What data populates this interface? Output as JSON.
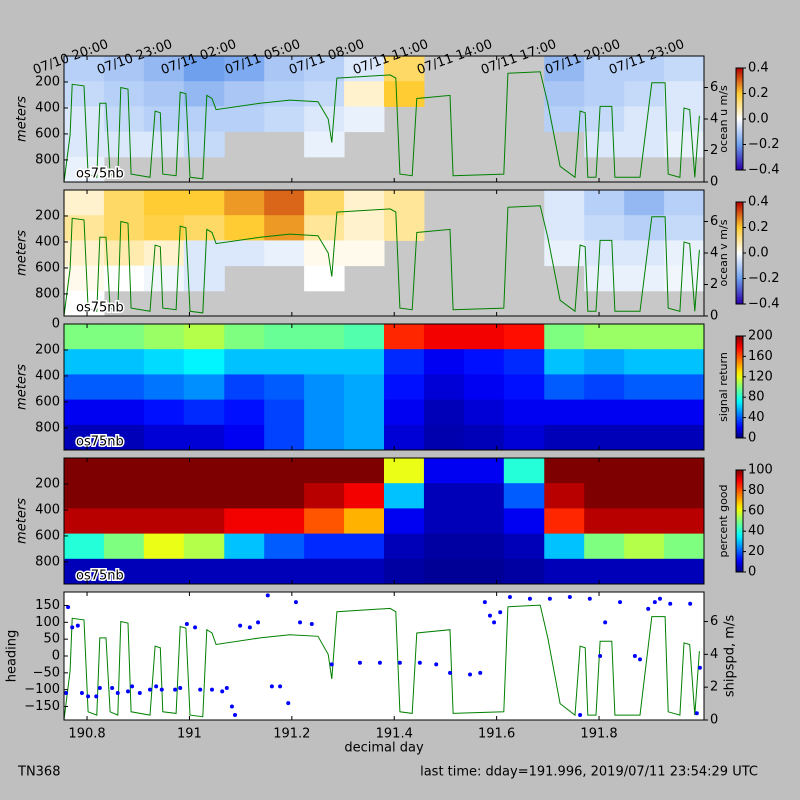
{
  "chart_data": [
    {
      "type": "heatmap",
      "ylabel": "meters",
      "annotation": "os75nb",
      "cbar_label": "ocean u m/s",
      "cmap": "diverging",
      "clim": [
        -0.4,
        0.4
      ],
      "cticks": [
        {
          "value": -0.4,
          "label": "−0.4"
        },
        {
          "value": -0.2,
          "label": "−0.2"
        },
        {
          "value": 0,
          "label": "0.0"
        },
        0.2,
        0.4
      ],
      "ylim": [
        0,
        970
      ],
      "yinvert": true,
      "yticks": [
        200,
        400,
        600,
        800
      ],
      "y2lim": [
        0,
        8
      ],
      "y2ticks": [
        0,
        2,
        4,
        6
      ],
      "x2ticks": [
        {
          "value": 190.833,
          "label": "07/10 20:00"
        },
        {
          "value": 190.958,
          "label": "07/10 23:00"
        },
        {
          "value": 191.083,
          "label": "07/11 02:00"
        },
        {
          "value": 191.208,
          "label": "07/11 05:00"
        },
        {
          "value": 191.333,
          "label": "07/11 08:00"
        },
        {
          "value": 191.458,
          "label": "07/11 11:00"
        },
        {
          "value": 191.583,
          "label": "07/11 14:00"
        },
        {
          "value": 191.708,
          "label": "07/11 17:00"
        },
        {
          "value": 191.833,
          "label": "07/11 20:00"
        },
        {
          "value": 191.958,
          "label": "07/11 23:00"
        }
      ],
      "xbins": [
        190.755,
        190.833,
        190.911,
        190.989,
        191.068,
        191.146,
        191.224,
        191.302,
        191.38,
        191.458,
        191.536,
        191.614,
        191.693,
        191.771,
        191.849,
        191.927,
        192.005
      ],
      "ybins": [
        0,
        194,
        388,
        582,
        776,
        970
      ],
      "z": [
        [
          -0.1,
          -0.12,
          -0.15,
          -0.2,
          -0.18,
          -0.12,
          -0.1,
          -0.05,
          0.15,
          null,
          null,
          null,
          -0.15,
          -0.1,
          -0.1,
          -0.08
        ],
        [
          -0.08,
          -0.1,
          -0.12,
          -0.15,
          -0.12,
          -0.1,
          -0.08,
          0.05,
          0.2,
          null,
          null,
          null,
          -0.12,
          -0.1,
          -0.08,
          -0.05
        ],
        [
          -0.05,
          -0.08,
          -0.1,
          -0.1,
          -0.1,
          -0.08,
          -0.05,
          -0.03,
          null,
          null,
          null,
          null,
          -0.1,
          -0.08,
          -0.05,
          -0.05
        ],
        [
          -0.05,
          -0.05,
          -0.05,
          -0.08,
          null,
          null,
          -0.03,
          null,
          null,
          null,
          null,
          null,
          null,
          -0.05,
          -0.05,
          -0.03
        ],
        [
          -0.03,
          null,
          null,
          null,
          null,
          null,
          null,
          null,
          null,
          null,
          null,
          null,
          null,
          null,
          null,
          null
        ]
      ]
    },
    {
      "type": "heatmap",
      "ylabel": "meters",
      "annotation": "os75nb",
      "cbar_label": "ocean v m/s",
      "cmap": "diverging",
      "clim": [
        -0.4,
        0.4
      ],
      "cticks": [
        {
          "value": -0.4,
          "label": "−0.4"
        },
        {
          "value": -0.2,
          "label": "−0.2"
        },
        {
          "value": 0,
          "label": "0.0"
        },
        0.2,
        0.4
      ],
      "ylim": [
        0,
        970
      ],
      "yinvert": true,
      "yticks": [
        200,
        400,
        600,
        800
      ],
      "y2lim": [
        0,
        8
      ],
      "y2ticks": [
        0,
        2,
        4,
        6
      ],
      "xbins": [
        190.755,
        190.833,
        190.911,
        190.989,
        191.068,
        191.146,
        191.224,
        191.302,
        191.38,
        191.458,
        191.536,
        191.614,
        191.693,
        191.771,
        191.849,
        191.927,
        192.005
      ],
      "ybins": [
        0,
        194,
        388,
        582,
        776,
        970
      ],
      "z": [
        [
          0.05,
          0.15,
          0.2,
          0.2,
          0.25,
          0.3,
          0.15,
          0.05,
          0.1,
          null,
          null,
          null,
          -0.05,
          -0.1,
          -0.15,
          -0.1
        ],
        [
          0.1,
          0.15,
          0.18,
          0.15,
          0.2,
          0.25,
          0.1,
          0.05,
          0.1,
          null,
          null,
          null,
          -0.05,
          -0.08,
          -0.1,
          -0.08
        ],
        [
          0.05,
          0.08,
          0.05,
          -0.05,
          -0.05,
          -0.03,
          0.02,
          0.02,
          null,
          null,
          null,
          null,
          -0.03,
          -0.05,
          -0.05,
          -0.03
        ],
        [
          0.02,
          0,
          -0.02,
          -0.05,
          null,
          null,
          0,
          null,
          null,
          null,
          null,
          null,
          null,
          -0.03,
          -0.03,
          -0.02
        ],
        [
          0,
          null,
          null,
          null,
          null,
          null,
          null,
          null,
          null,
          null,
          null,
          null,
          null,
          null,
          null,
          null
        ]
      ]
    },
    {
      "type": "heatmap",
      "ylabel": "meters",
      "annotation": "os75nb",
      "cbar_label": "signal return",
      "cmap": "jet",
      "clim": [
        0,
        200
      ],
      "cticks": [
        0,
        40,
        80,
        120,
        160,
        200
      ],
      "ylim": [
        0,
        970
      ],
      "yinvert": true,
      "yticks": [
        0,
        200,
        400,
        600,
        800
      ],
      "xbins": [
        190.755,
        190.833,
        190.911,
        190.989,
        191.068,
        191.146,
        191.224,
        191.302,
        191.38,
        191.458,
        191.536,
        191.614,
        191.693,
        191.771,
        191.849,
        191.927,
        192.005
      ],
      "ybins": [
        0,
        194,
        388,
        582,
        776,
        970
      ],
      "z": [
        [
          100,
          100,
          105,
          110,
          100,
          95,
          95,
          90,
          170,
          180,
          180,
          175,
          100,
          105,
          105,
          105
        ],
        [
          60,
          60,
          65,
          70,
          60,
          60,
          60,
          60,
          30,
          20,
          25,
          30,
          60,
          55,
          60,
          60
        ],
        [
          40,
          40,
          45,
          50,
          35,
          40,
          50,
          55,
          25,
          15,
          20,
          25,
          40,
          35,
          40,
          40
        ],
        [
          20,
          20,
          25,
          30,
          25,
          35,
          50,
          55,
          20,
          10,
          15,
          20,
          20,
          20,
          20,
          20
        ],
        [
          10,
          10,
          15,
          15,
          20,
          35,
          50,
          55,
          15,
          8,
          10,
          15,
          10,
          10,
          10,
          10
        ]
      ]
    },
    {
      "type": "heatmap",
      "ylabel": "meters",
      "annotation": "os75nb",
      "cbar_label": "percent good",
      "cmap": "jet",
      "clim": [
        0,
        100
      ],
      "cticks": [
        0,
        20,
        40,
        60,
        80,
        100
      ],
      "ylim": [
        0,
        970
      ],
      "yinvert": true,
      "yticks": [
        200,
        400,
        600,
        800
      ],
      "xbins": [
        190.755,
        190.833,
        190.911,
        190.989,
        191.068,
        191.146,
        191.224,
        191.302,
        191.38,
        191.458,
        191.536,
        191.614,
        191.693,
        191.771,
        191.849,
        191.927,
        192.005
      ],
      "ybins": [
        0,
        194,
        388,
        582,
        776,
        970
      ],
      "z": [
        [
          100,
          100,
          100,
          100,
          100,
          100,
          100,
          100,
          60,
          10,
          10,
          40,
          100,
          100,
          100,
          100
        ],
        [
          100,
          100,
          100,
          100,
          100,
          100,
          95,
          90,
          30,
          5,
          5,
          20,
          95,
          100,
          100,
          100
        ],
        [
          95,
          95,
          95,
          95,
          90,
          90,
          80,
          70,
          10,
          5,
          5,
          10,
          85,
          95,
          95,
          95
        ],
        [
          40,
          50,
          60,
          55,
          30,
          20,
          15,
          15,
          5,
          3,
          3,
          5,
          30,
          50,
          55,
          50
        ],
        [
          5,
          5,
          5,
          5,
          5,
          5,
          5,
          5,
          3,
          2,
          2,
          3,
          5,
          5,
          5,
          5
        ]
      ]
    },
    {
      "type": "scatter",
      "ylabel": "heading",
      "y2label": "shipspd, m/s",
      "xlabel": "decimal day",
      "xlim": [
        190.755,
        192.005
      ],
      "xticks": [
        190.8,
        191.0,
        191.2,
        191.4,
        191.6,
        191.8
      ],
      "ylim": [
        -190,
        190
      ],
      "yticks": [
        {
          "value": -150,
          "label": "−150"
        },
        {
          "value": -100,
          "label": "−100"
        },
        {
          "value": -50,
          "label": "−50"
        },
        0,
        50,
        100,
        150
      ],
      "y2lim": [
        0,
        7.8
      ],
      "y2ticks": [
        0,
        2,
        4,
        6
      ],
      "series": [
        {
          "color": "#0000ff",
          "x": [
            190.759,
            190.763,
            190.771,
            190.782,
            190.79,
            190.802,
            190.818,
            190.825,
            190.849,
            190.86,
            190.88,
            190.888,
            190.903,
            190.923,
            190.935,
            190.946,
            190.972,
            190.982,
            190.995,
            191.011,
            191.021,
            191.044,
            191.064,
            191.073,
            191.083,
            191.089,
            191.099,
            191.118,
            191.134,
            191.153,
            191.161,
            191.177,
            191.193,
            191.208,
            191.216,
            191.239,
            191.278,
            191.333,
            191.372,
            191.411,
            191.45,
            191.482,
            191.509,
            191.548,
            191.568,
            191.577,
            191.587,
            191.595,
            191.607,
            191.626,
            191.665,
            191.704,
            191.743,
            191.763,
            191.782,
            191.802,
            191.812,
            191.841,
            191.87,
            191.88,
            191.896,
            191.909,
            191.919,
            191.939,
            191.978,
            191.991,
            191.997
          ],
          "values": [
            -110,
            145,
            85,
            90,
            -110,
            -120,
            -120,
            -95,
            -95,
            -110,
            -105,
            -90,
            -110,
            -100,
            -90,
            -100,
            -100,
            -95,
            95,
            85,
            -100,
            -100,
            -105,
            -95,
            -150,
            -175,
            90,
            85,
            100,
            180,
            -90,
            -90,
            -140,
            160,
            100,
            95,
            -25,
            -20,
            -20,
            -20,
            -20,
            -25,
            -50,
            -55,
            -50,
            160,
            120,
            100,
            130,
            175,
            170,
            170,
            175,
            -175,
            170,
            0,
            100,
            160,
            0,
            -10,
            140,
            160,
            170,
            155,
            155,
            -170,
            -35
          ]
        },
        {
          "type": "line",
          "axis": "y2",
          "color": "#008000",
          "x": [
            190.755,
            190.767,
            190.771,
            190.794,
            190.802,
            190.819,
            190.825,
            190.837,
            190.845,
            190.86,
            190.866,
            190.88,
            190.886,
            190.923,
            190.933,
            190.943,
            190.948,
            190.974,
            190.982,
            190.993,
            191.001,
            191.026,
            191.034,
            191.044,
            191.052,
            191.138,
            191.196,
            191.251,
            191.271,
            191.278,
            191.288,
            191.392,
            191.403,
            191.411,
            191.435,
            191.444,
            191.509,
            191.515,
            191.614,
            191.622,
            191.685,
            191.7,
            191.724,
            191.753,
            191.763,
            191.773,
            191.778,
            191.794,
            191.802,
            191.825,
            191.831,
            191.88,
            191.903,
            191.929,
            191.935,
            191.958,
            191.966,
            191.977,
            191.987,
            191.996
          ],
          "values": [
            0,
            3,
            6.2,
            6.1,
            0.5,
            0.3,
            5,
            5,
            0.5,
            0.3,
            6,
            5.9,
            0.5,
            0.3,
            4.5,
            4.4,
            0.5,
            0.4,
            5.7,
            5.6,
            0.3,
            0.2,
            5.5,
            5.3,
            4.6,
            5,
            5.2,
            5.1,
            4,
            2.5,
            6.6,
            6.8,
            6.6,
            0.5,
            0.4,
            5.3,
            5.5,
            0.4,
            0.5,
            6.9,
            7,
            5,
            1,
            0.3,
            4.5,
            4.4,
            0.3,
            0.3,
            4.8,
            4.8,
            0.3,
            0.3,
            6.3,
            6.3,
            0.5,
            0.3,
            4.7,
            4.6,
            0.3,
            4.2
          ]
        }
      ]
    }
  ],
  "footer": {
    "left": "TN368",
    "right": "last time: dday=191.996,  2019/07/11 23:54:29 UTC"
  }
}
